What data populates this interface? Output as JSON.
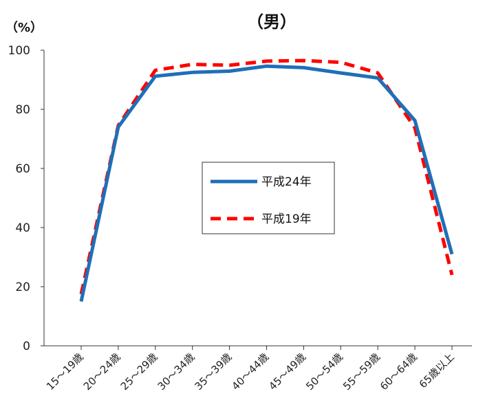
{
  "chart_data": {
    "type": "line",
    "title": "（男）",
    "unit_label": "（%）",
    "categories": [
      "15～19歳",
      "20～24歳",
      "25～29歳",
      "30～34歳",
      "35～39歳",
      "40～44歳",
      "45～49歳",
      "50～54歳",
      "55～59歳",
      "60～64歳",
      "65歳以上"
    ],
    "ylim": [
      0,
      100
    ],
    "yticks": [
      0,
      20,
      40,
      60,
      80,
      100
    ],
    "grid": false,
    "legend_position": "center",
    "series": [
      {
        "name": "平成24年",
        "color": "#1f6fb8",
        "dash": "solid",
        "values": [
          15,
          74,
          91.2,
          92.5,
          92.9,
          94.6,
          94.1,
          92.3,
          90.6,
          76.2,
          31
        ]
      },
      {
        "name": "平成19年",
        "color": "#ff0000",
        "dash": "dashed",
        "values": [
          17.5,
          74.5,
          93.2,
          95.2,
          94.9,
          96.3,
          96.5,
          95.9,
          92.3,
          73.7,
          24
        ]
      }
    ]
  }
}
